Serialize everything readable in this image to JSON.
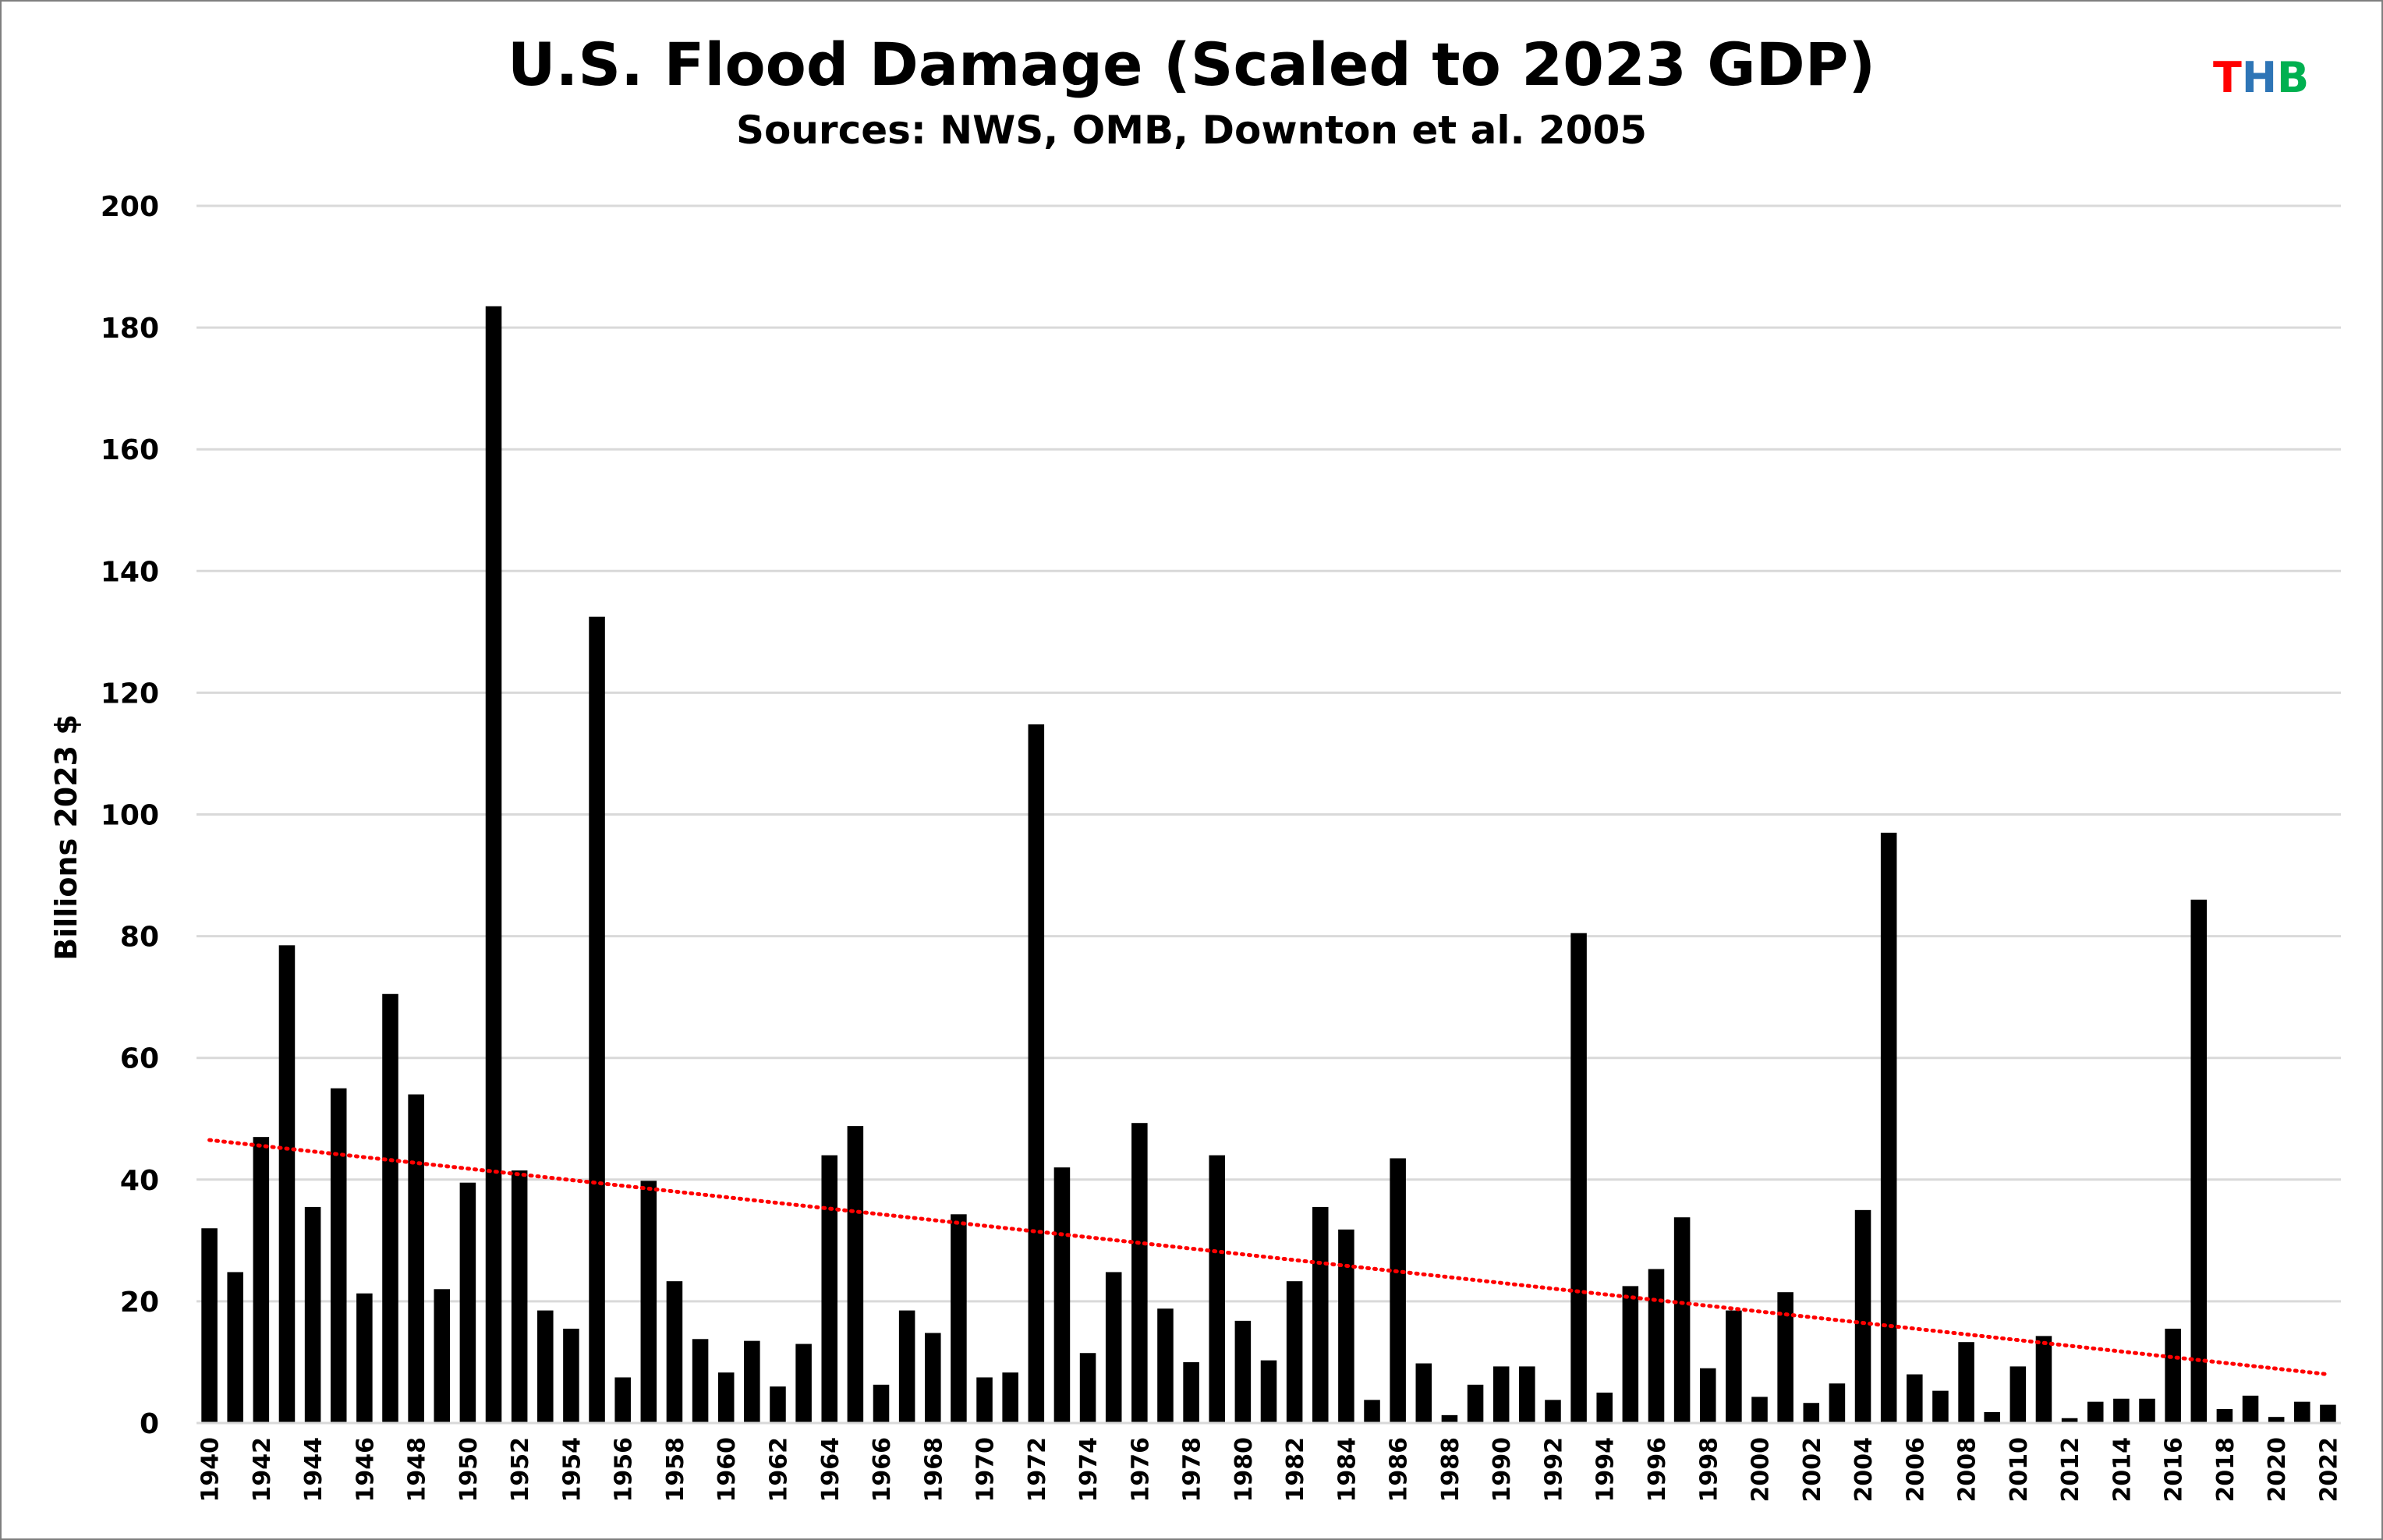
{
  "chart_data": {
    "type": "bar",
    "title": "U.S. Flood Damage (Scaled to 2023 GDP)",
    "subtitle": "Sources: NWS, OMB, Downton et al. 2005",
    "xlabel": "",
    "ylabel": "Billions 2023 $",
    "ylim": [
      0,
      200
    ],
    "yticks": [
      0,
      20,
      40,
      60,
      80,
      100,
      120,
      140,
      160,
      180,
      200
    ],
    "grid": true,
    "bar_color": "#000000",
    "trendline": {
      "type": "linear",
      "style": "dotted",
      "color": "#ff0000",
      "start": {
        "year": 1940,
        "value": 46.5
      },
      "end": {
        "year": 2022,
        "value": 8.0
      }
    },
    "x_tick_labels": [
      "1940",
      "1942",
      "1944",
      "1946",
      "1948",
      "1950",
      "1952",
      "1954",
      "1956",
      "1958",
      "1960",
      "1962",
      "1964",
      "1966",
      "1968",
      "1970",
      "1972",
      "1974",
      "1976",
      "1978",
      "1980",
      "1982",
      "1984",
      "1986",
      "1988",
      "1990",
      "1992",
      "1994",
      "1996",
      "1998",
      "2000",
      "2002",
      "2004",
      "2006",
      "2008",
      "2010",
      "2012",
      "2014",
      "2016",
      "2018",
      "2020",
      "2022"
    ],
    "categories": [
      1940,
      1941,
      1942,
      1943,
      1944,
      1945,
      1946,
      1947,
      1948,
      1949,
      1950,
      1951,
      1952,
      1953,
      1954,
      1955,
      1956,
      1957,
      1958,
      1959,
      1960,
      1961,
      1962,
      1963,
      1964,
      1965,
      1966,
      1967,
      1968,
      1969,
      1970,
      1971,
      1972,
      1973,
      1974,
      1975,
      1976,
      1977,
      1978,
      1979,
      1980,
      1981,
      1982,
      1983,
      1984,
      1985,
      1986,
      1987,
      1988,
      1989,
      1990,
      1991,
      1992,
      1993,
      1994,
      1995,
      1996,
      1997,
      1998,
      1999,
      2000,
      2001,
      2002,
      2003,
      2004,
      2005,
      2006,
      2007,
      2008,
      2009,
      2010,
      2011,
      2012,
      2013,
      2014,
      2015,
      2016,
      2017,
      2018,
      2019,
      2020,
      2021,
      2022
    ],
    "values": [
      32,
      24.8,
      47,
      78.5,
      35.5,
      55,
      21.3,
      70.5,
      54,
      22,
      39.5,
      183.5,
      41.5,
      18.5,
      15.5,
      132.5,
      7.5,
      39.8,
      23.3,
      13.8,
      8.3,
      13.5,
      6,
      13,
      44,
      48.8,
      6.3,
      18.5,
      14.8,
      34.3,
      7.5,
      8.3,
      114.8,
      42,
      11.5,
      24.8,
      49.3,
      18.8,
      10,
      44,
      16.8,
      10.3,
      23.3,
      35.5,
      31.8,
      3.8,
      43.5,
      9.8,
      1.3,
      6.3,
      9.3,
      9.3,
      3.8,
      80.5,
      5,
      22.5,
      25.3,
      33.8,
      9,
      18.5,
      4.3,
      21.5,
      3.3,
      6.5,
      35,
      97,
      8,
      5.3,
      13.3,
      1.8,
      9.3,
      14.3,
      0.8,
      3.5,
      4,
      4,
      15.5,
      86,
      2.3,
      4.5,
      1,
      3.5,
      3
    ]
  },
  "logo": {
    "letters": [
      "T",
      "H",
      "B"
    ],
    "colors": [
      "#ff0000",
      "#2e75b6",
      "#00b050"
    ]
  }
}
